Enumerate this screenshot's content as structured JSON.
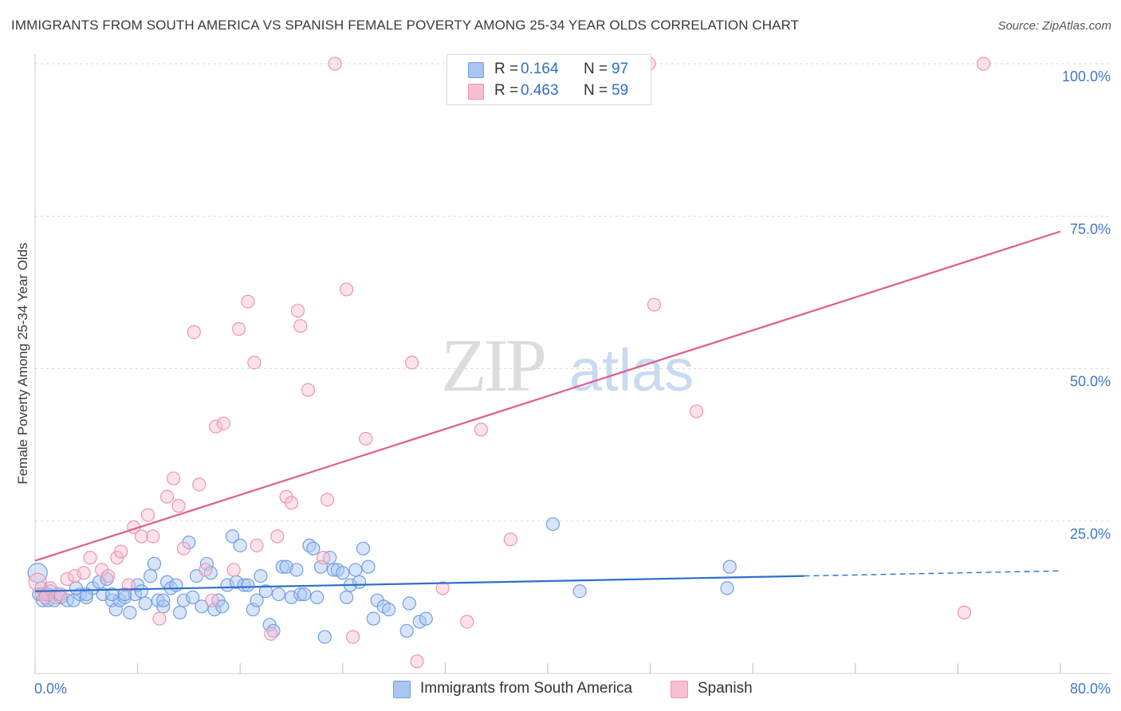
{
  "title": "IMMIGRANTS FROM SOUTH AMERICA VS SPANISH FEMALE POVERTY AMONG 25-34 YEAR OLDS CORRELATION CHART",
  "source": "Source: ZipAtlas.com",
  "watermark": {
    "zip": "ZIP",
    "atlas": "atlas"
  },
  "legend": {
    "r_label": "R =",
    "n_label": "N =",
    "rows": [
      {
        "r": "0.164",
        "n": "97"
      },
      {
        "r": "0.463",
        "n": "59"
      }
    ]
  },
  "bottom_legend": [
    "Immigrants from South America",
    "Spanish"
  ],
  "chart_data": {
    "type": "scatter",
    "title": "IMMIGRANTS FROM SOUTH AMERICA VS SPANISH FEMALE POVERTY AMONG 25-34 YEAR OLDS CORRELATION CHART",
    "ylabel": "Female Poverty Among 25-34 Year Olds",
    "xlabel": "",
    "xlim": [
      0,
      80
    ],
    "ylim": [
      0,
      102
    ],
    "x_tick_labels": [
      {
        "value": 0,
        "label": "0.0%"
      },
      {
        "value": 80,
        "label": "80.0%"
      }
    ],
    "y_tick_labels": [
      {
        "value": 25,
        "label": "25.0%"
      },
      {
        "value": 50,
        "label": "50.0%"
      },
      {
        "value": 75,
        "label": "75.0%"
      },
      {
        "value": 100,
        "label": "100.0%"
      }
    ],
    "grid": "horizontal dashed",
    "legend_position": "top-center",
    "series": [
      {
        "name": "Immigrants from South America",
        "color": "#6f9ee6",
        "fill": "#a9c5f0",
        "trend_color": "#2d6fcb",
        "r": 0.164,
        "n": 97,
        "trend": {
          "x0": 0,
          "y0": 13.5,
          "x1": 60,
          "y1": 16.0,
          "dash_to": 80
        },
        "points": [
          [
            0.3,
            13
          ],
          [
            0.5,
            14
          ],
          [
            0.6,
            12
          ],
          [
            0.8,
            13
          ],
          [
            1,
            12
          ],
          [
            1.2,
            13.5
          ],
          [
            1.5,
            12
          ],
          [
            1.8,
            13
          ],
          [
            2,
            12.5
          ],
          [
            2.5,
            12
          ],
          [
            3,
            12
          ],
          [
            3.5,
            13
          ],
          [
            4,
            12.5
          ],
          [
            4.5,
            14
          ],
          [
            5,
            15
          ],
          [
            5.3,
            13
          ],
          [
            5.6,
            15.5
          ],
          [
            6,
            12
          ],
          [
            6.3,
            10.5
          ],
          [
            6.6,
            12
          ],
          [
            7,
            12.5
          ],
          [
            7.4,
            10
          ],
          [
            7.8,
            13
          ],
          [
            8,
            14.5
          ],
          [
            8.3,
            13.5
          ],
          [
            8.6,
            11.5
          ],
          [
            9,
            16
          ],
          [
            9.3,
            18
          ],
          [
            9.6,
            12
          ],
          [
            10,
            11
          ],
          [
            10.3,
            15
          ],
          [
            10.6,
            14
          ],
          [
            11,
            14.5
          ],
          [
            11.3,
            10
          ],
          [
            11.6,
            12
          ],
          [
            12,
            21.5
          ],
          [
            12.3,
            12.5
          ],
          [
            12.6,
            16
          ],
          [
            13,
            11
          ],
          [
            13.4,
            18
          ],
          [
            13.7,
            16.5
          ],
          [
            14,
            10.5
          ],
          [
            14.3,
            12
          ],
          [
            14.6,
            11
          ],
          [
            15,
            14.5
          ],
          [
            15.4,
            22.5
          ],
          [
            15.7,
            15
          ],
          [
            16,
            21
          ],
          [
            16.3,
            14.5
          ],
          [
            16.6,
            14.5
          ],
          [
            17,
            10.5
          ],
          [
            17.3,
            12
          ],
          [
            17.6,
            16
          ],
          [
            18,
            13.5
          ],
          [
            18.3,
            8
          ],
          [
            18.6,
            7
          ],
          [
            19,
            13
          ],
          [
            19.3,
            17.5
          ],
          [
            19.6,
            17.5
          ],
          [
            20,
            12.5
          ],
          [
            20.4,
            17
          ],
          [
            20.7,
            13
          ],
          [
            21,
            13
          ],
          [
            21.4,
            21
          ],
          [
            21.7,
            20.5
          ],
          [
            22,
            12.5
          ],
          [
            22.3,
            17.5
          ],
          [
            22.6,
            6
          ],
          [
            23,
            19
          ],
          [
            23.3,
            17
          ],
          [
            23.6,
            17
          ],
          [
            24,
            16.5
          ],
          [
            24.3,
            12.5
          ],
          [
            24.6,
            14.5
          ],
          [
            25,
            17
          ],
          [
            25.3,
            15
          ],
          [
            25.6,
            20.5
          ],
          [
            26,
            17.5
          ],
          [
            26.4,
            9
          ],
          [
            26.7,
            12
          ],
          [
            27.2,
            11
          ],
          [
            27.6,
            10.5
          ],
          [
            29,
            7
          ],
          [
            29.2,
            11.5
          ],
          [
            30,
            8.5
          ],
          [
            30.5,
            9
          ],
          [
            40.4,
            24.5
          ],
          [
            42.5,
            13.5
          ],
          [
            54,
            14
          ],
          [
            54.2,
            17.5
          ],
          [
            0.2,
            16.5
          ],
          [
            1,
            13
          ],
          [
            3.2,
            14
          ],
          [
            4,
            13
          ],
          [
            6,
            13
          ],
          [
            7,
            13
          ],
          [
            10,
            12
          ]
        ]
      },
      {
        "name": "Spanish",
        "color": "#ee93b2",
        "fill": "#f7bfd2",
        "trend_color": "#e05c8c",
        "r": 0.463,
        "n": 59,
        "trend": {
          "x0": 0,
          "y0": 18.5,
          "x1": 80,
          "y1": 72.5
        },
        "points": [
          [
            0.2,
            15
          ],
          [
            0.5,
            13
          ],
          [
            0.8,
            12.5
          ],
          [
            1.2,
            14
          ],
          [
            1.6,
            12.5
          ],
          [
            2,
            13
          ],
          [
            2.5,
            15.5
          ],
          [
            3.1,
            16
          ],
          [
            3.8,
            16.5
          ],
          [
            4.3,
            19
          ],
          [
            5.2,
            17
          ],
          [
            5.7,
            16
          ],
          [
            6.4,
            19
          ],
          [
            6.7,
            20
          ],
          [
            7.3,
            14.5
          ],
          [
            7.7,
            24
          ],
          [
            8.3,
            22.5
          ],
          [
            8.8,
            26
          ],
          [
            9.2,
            22.5
          ],
          [
            9.7,
            9
          ],
          [
            10.3,
            29
          ],
          [
            10.8,
            32
          ],
          [
            11.2,
            27.5
          ],
          [
            11.6,
            20.5
          ],
          [
            12.4,
            56
          ],
          [
            12.8,
            31
          ],
          [
            13.3,
            17
          ],
          [
            13.8,
            12
          ],
          [
            14.1,
            40.5
          ],
          [
            14.7,
            41
          ],
          [
            15.5,
            17
          ],
          [
            15.9,
            56.5
          ],
          [
            16.6,
            61
          ],
          [
            17.1,
            51
          ],
          [
            17.3,
            21
          ],
          [
            18.4,
            6.5
          ],
          [
            18.9,
            22.5
          ],
          [
            19.6,
            29
          ],
          [
            20,
            28
          ],
          [
            20.5,
            59.5
          ],
          [
            20.7,
            57
          ],
          [
            21.3,
            46.5
          ],
          [
            22.5,
            19
          ],
          [
            22.8,
            28.5
          ],
          [
            23.4,
            100
          ],
          [
            24.3,
            63
          ],
          [
            24.8,
            6
          ],
          [
            25.8,
            38.5
          ],
          [
            29.4,
            51
          ],
          [
            29.8,
            2
          ],
          [
            31.8,
            14
          ],
          [
            33.7,
            8.5
          ],
          [
            34.8,
            40
          ],
          [
            37.1,
            22
          ],
          [
            47.9,
            100
          ],
          [
            48.3,
            60.5
          ],
          [
            51.6,
            43
          ],
          [
            72.5,
            10
          ],
          [
            74,
            100
          ]
        ]
      }
    ]
  }
}
